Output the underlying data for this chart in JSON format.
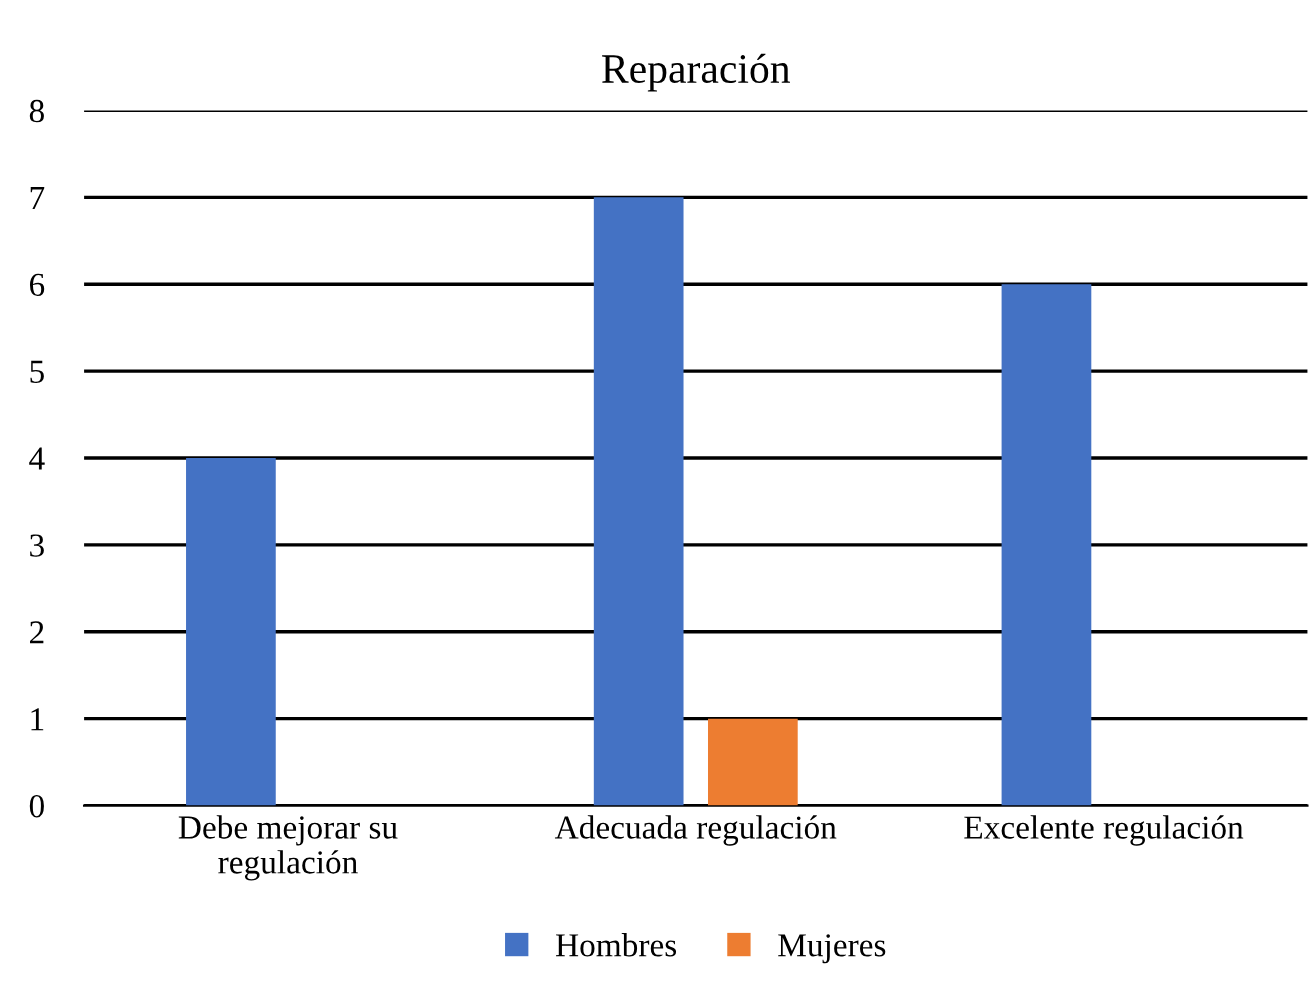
{
  "chart_data": {
    "type": "bar",
    "title": "Reparación",
    "categories": [
      "Debe mejorar su\nregulación",
      "Adecuada regulación",
      "Excelente regulación"
    ],
    "series": [
      {
        "name": "Hombres",
        "color": "#4472c4",
        "values": [
          4,
          7,
          6
        ]
      },
      {
        "name": "Mujeres",
        "color": "#ed7d31",
        "values": [
          0,
          1,
          0
        ]
      }
    ],
    "ylim": [
      0,
      8
    ],
    "yticks": [
      0,
      1,
      2,
      3,
      4,
      5,
      6,
      7,
      8
    ],
    "grid": "y",
    "legend": "bottom"
  }
}
